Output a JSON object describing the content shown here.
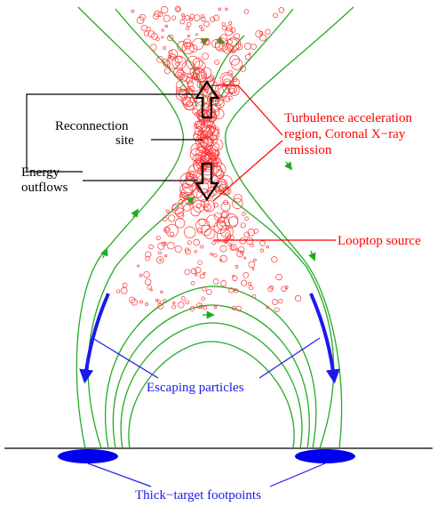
{
  "labels": {
    "reconnection_line1": "Reconnection",
    "reconnection_line2": "site",
    "energy_line1": "Energy",
    "energy_line2": "outflows",
    "turbulence_line1": "Turbulence acceleration",
    "turbulence_line2": "region, Coronal X−ray",
    "turbulence_line3": "emission",
    "looptop": "Looptop source",
    "escaping": "Escaping particles",
    "footpoints": "Thick−target footpoints"
  },
  "colors": {
    "field_lines": "#22aa22",
    "particles": "#ff3333",
    "red_label": "#ff0000",
    "blue_label": "#1a1aee",
    "footpoint_fill": "#0000ee",
    "black": "#000000"
  }
}
